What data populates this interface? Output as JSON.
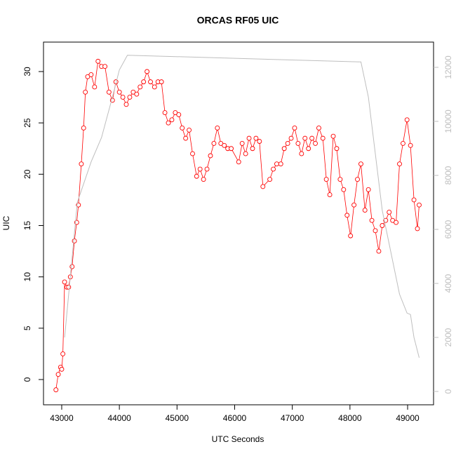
{
  "chart_data": {
    "type": "line",
    "title": "ORCAS RF05 UIC",
    "xlabel": "UTC Seconds",
    "ylabel": "UIC",
    "xlim": [
      42684,
      49450
    ],
    "xticks": [
      43000,
      44000,
      45000,
      46000,
      47000,
      48000,
      49000
    ],
    "ylim": [
      -2.46,
      32.87
    ],
    "yticks": [
      0,
      5,
      10,
      15,
      20,
      25,
      30
    ],
    "y2lim": [
      -494,
      12935
    ],
    "y2ticks": [
      0,
      2000,
      4000,
      6000,
      8000,
      10000,
      12000
    ],
    "series": [
      {
        "color": "#ff0000",
        "markers": true,
        "x": [
          42900,
          42940,
          42980,
          43000,
          43020,
          43050,
          43090,
          43120,
          43150,
          43180,
          43220,
          43260,
          43290,
          43340,
          43380,
          43410,
          43450,
          43510,
          43570,
          43630,
          43690,
          43750,
          43820,
          43880,
          43940,
          44000,
          44060,
          44120,
          44180,
          44240,
          44300,
          44360,
          44420,
          44480,
          44540,
          44610,
          44670,
          44730,
          44790,
          44850,
          44910,
          44970,
          45030,
          45090,
          45150,
          45210,
          45270,
          45340,
          45400,
          45460,
          45520,
          45580,
          45640,
          45700,
          45760,
          45820,
          45880,
          45940,
          46070,
          46130,
          46190,
          46250,
          46310,
          46370,
          46430,
          46490,
          46610,
          46670,
          46730,
          46800,
          46860,
          46920,
          46980,
          47040,
          47100,
          47160,
          47220,
          47280,
          47340,
          47400,
          47460,
          47530,
          47590,
          47650,
          47710,
          47770,
          47830,
          47890,
          47950,
          48010,
          48070,
          48130,
          48190,
          48260,
          48320,
          48380,
          48440,
          48500,
          48560,
          48620,
          48680,
          48740,
          48800,
          48860,
          48920,
          48990,
          49050,
          49110,
          49170,
          49200
        ],
        "values": [
          -1,
          0.5,
          1.2,
          1,
          2.5,
          9.5,
          9,
          9,
          10,
          11,
          13.5,
          15.3,
          17,
          21,
          24.5,
          28,
          29.5,
          29.7,
          28.5,
          31,
          30.5,
          30.5,
          28,
          27.2,
          29,
          28,
          27.5,
          26.8,
          27.5,
          28,
          27.8,
          28.5,
          29,
          30,
          29,
          28.5,
          29,
          29,
          26,
          25,
          25.3,
          26,
          25.8,
          24.5,
          23.5,
          24.3,
          22,
          19.8,
          20.5,
          19.5,
          20.5,
          21.8,
          23,
          24.5,
          23,
          22.8,
          22.5,
          22.5,
          21.2,
          23,
          22,
          23.5,
          22.5,
          23.5,
          23.2,
          18.8,
          19.5,
          20.5,
          21,
          21,
          22.5,
          23,
          23.5,
          24.5,
          23,
          22,
          23.5,
          22.5,
          23.5,
          23,
          24.5,
          23.5,
          19.5,
          18,
          23.7,
          22.5,
          19.5,
          18.5,
          16,
          14,
          17,
          19.5,
          21,
          16.5,
          18.5,
          15.5,
          14.5,
          12.5,
          15,
          15.5,
          16.3,
          15.5,
          15.3,
          21,
          23,
          25.3,
          22.8,
          17.5,
          14.7,
          17
        ]
      },
      {
        "color": "#bebebe",
        "axis": "y2",
        "x": [
          43050,
          43270,
          43510,
          43690,
          43880,
          44000,
          44140,
          48190,
          48320,
          48560,
          48860,
          48990,
          49050,
          49110,
          49200
        ],
        "values": [
          2000,
          7000,
          8500,
          9400,
          10900,
          11900,
          12450,
          12200,
          10900,
          6700,
          3600,
          2900,
          2850,
          2000,
          1250
        ]
      }
    ]
  }
}
